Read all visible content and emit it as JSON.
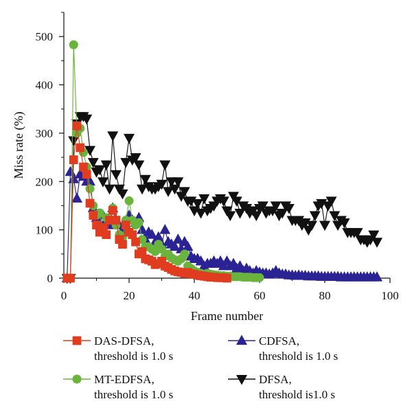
{
  "chart_data": {
    "type": "line",
    "title": "",
    "xlabel": "Frame number",
    "ylabel": "Miss rate (%)",
    "xlim": [
      0,
      100
    ],
    "ylim": [
      0,
      550
    ],
    "xticks": [
      0,
      20,
      40,
      60,
      80,
      100
    ],
    "yticks": [
      0,
      100,
      200,
      300,
      400,
      500
    ],
    "xtick_labels": [
      "0",
      "20",
      "40",
      "60",
      "80",
      "100"
    ],
    "ytick_labels": [
      "0",
      "100",
      "200",
      "300",
      "400",
      "500"
    ],
    "grid": false,
    "legend_position": "bottom",
    "series": [
      {
        "name": "DAS-DFSA,",
        "legend_line2": "threshold is 1.0 s",
        "color": "#e03c1f",
        "marker": "square",
        "x": [
          1,
          2,
          3,
          4,
          5,
          6,
          7,
          8,
          9,
          10,
          11,
          12,
          13,
          14,
          15,
          16,
          17,
          18,
          19,
          20,
          21,
          22,
          23,
          24,
          25,
          26,
          27,
          28,
          29,
          30,
          31,
          32,
          33,
          34,
          35,
          36,
          37,
          38,
          39,
          40,
          41,
          42,
          43,
          44,
          45,
          46,
          47,
          48,
          49,
          50
        ],
        "y": [
          0,
          0,
          245,
          315,
          270,
          230,
          215,
          155,
          130,
          110,
          95,
          105,
          90,
          120,
          140,
          120,
          80,
          70,
          110,
          95,
          90,
          75,
          50,
          55,
          40,
          38,
          35,
          28,
          30,
          35,
          25,
          22,
          18,
          15,
          13,
          12,
          10,
          12,
          9,
          8,
          6,
          5,
          4,
          3,
          2,
          2,
          1,
          1,
          1,
          0
        ]
      },
      {
        "name": "MT-EDFSA,",
        "legend_line2": "threshold is 1.0 s",
        "color": "#6ab43e",
        "marker": "circle",
        "x": [
          1,
          2,
          3,
          4,
          5,
          6,
          7,
          8,
          9,
          10,
          11,
          12,
          13,
          14,
          15,
          16,
          17,
          18,
          19,
          20,
          21,
          22,
          23,
          24,
          25,
          26,
          27,
          28,
          29,
          30,
          31,
          32,
          33,
          34,
          35,
          36,
          37,
          38,
          39,
          40,
          41,
          42,
          43,
          44,
          45,
          46,
          47,
          48,
          49,
          50,
          51,
          52,
          53,
          54,
          55,
          56,
          57,
          58,
          59,
          60
        ],
        "y": [
          0,
          0,
          483,
          300,
          310,
          260,
          230,
          185,
          150,
          130,
          135,
          100,
          125,
          120,
          145,
          110,
          90,
          85,
          120,
          160,
          120,
          110,
          115,
          80,
          65,
          65,
          60,
          55,
          70,
          60,
          45,
          50,
          42,
          38,
          35,
          40,
          50,
          25,
          20,
          15,
          12,
          10,
          8,
          10,
          8,
          7,
          6,
          5,
          5,
          4,
          4,
          3,
          3,
          3,
          2,
          2,
          2,
          1,
          1,
          1
        ]
      },
      {
        "name": "CDFSA,",
        "legend_line2": "threshold is 1.0 s",
        "color": "#2b2394",
        "marker": "triangle-up",
        "x": [
          1,
          2,
          3,
          4,
          5,
          6,
          7,
          8,
          9,
          10,
          11,
          12,
          13,
          14,
          15,
          16,
          17,
          18,
          19,
          20,
          21,
          22,
          23,
          24,
          25,
          26,
          27,
          28,
          29,
          30,
          31,
          32,
          33,
          34,
          35,
          36,
          37,
          38,
          39,
          40,
          41,
          42,
          43,
          44,
          45,
          46,
          47,
          48,
          49,
          50,
          51,
          52,
          53,
          54,
          55,
          56,
          57,
          58,
          59,
          60,
          61,
          62,
          63,
          64,
          65,
          66,
          67,
          68,
          69,
          70,
          71,
          72,
          73,
          74,
          75,
          76,
          77,
          78,
          79,
          80,
          81,
          82,
          83,
          84,
          85,
          86,
          87,
          88,
          89,
          90,
          91,
          92,
          93,
          94,
          95,
          96
        ],
        "y": [
          0,
          220,
          205,
          165,
          215,
          210,
          200,
          200,
          145,
          125,
          115,
          130,
          120,
          110,
          145,
          120,
          110,
          100,
          110,
          130,
          120,
          115,
          125,
          100,
          80,
          95,
          90,
          75,
          85,
          70,
          100,
          75,
          70,
          65,
          80,
          60,
          75,
          65,
          45,
          40,
          40,
          35,
          25,
          30,
          30,
          35,
          30,
          35,
          25,
          35,
          25,
          30,
          20,
          25,
          15,
          20,
          15,
          10,
          15,
          12,
          10,
          10,
          8,
          10,
          15,
          10,
          8,
          8,
          6,
          6,
          5,
          6,
          5,
          5,
          4,
          4,
          4,
          4,
          3,
          3,
          3,
          3,
          3,
          3,
          2,
          2,
          2,
          2,
          2,
          2,
          2,
          2,
          2,
          2,
          2,
          2
        ]
      },
      {
        "name": "DFSA,",
        "legend_line2": "threshold is1.0 s",
        "color": "#111111",
        "marker": "triangle-down",
        "x": [
          1,
          2,
          3,
          4,
          5,
          6,
          7,
          8,
          9,
          10,
          11,
          12,
          13,
          14,
          15,
          16,
          17,
          18,
          19,
          20,
          21,
          22,
          23,
          24,
          25,
          26,
          27,
          28,
          29,
          30,
          31,
          32,
          33,
          34,
          35,
          36,
          37,
          38,
          39,
          40,
          41,
          42,
          43,
          44,
          45,
          46,
          47,
          48,
          49,
          50,
          51,
          52,
          53,
          54,
          55,
          56,
          57,
          58,
          59,
          60,
          61,
          62,
          63,
          64,
          65,
          66,
          67,
          68,
          69,
          70,
          71,
          72,
          73,
          74,
          75,
          76,
          77,
          78,
          79,
          80,
          81,
          82,
          83,
          84,
          85,
          86,
          87,
          88,
          89,
          90,
          91,
          92,
          93,
          94,
          95,
          96
        ],
        "y": [
          0,
          0,
          285,
          320,
          335,
          335,
          330,
          265,
          240,
          220,
          225,
          200,
          235,
          185,
          295,
          215,
          185,
          175,
          240,
          290,
          245,
          250,
          235,
          185,
          205,
          190,
          185,
          185,
          190,
          195,
          235,
          180,
          200,
          185,
          200,
          170,
          180,
          160,
          160,
          140,
          155,
          135,
          165,
          140,
          145,
          150,
          160,
          165,
          160,
          140,
          130,
          170,
          160,
          135,
          150,
          145,
          135,
          140,
          130,
          145,
          150,
          135,
          140,
          140,
          150,
          130,
          135,
          150,
          145,
          120,
          120,
          120,
          110,
          115,
          100,
          110,
          130,
          150,
          155,
          110,
          150,
          160,
          130,
          110,
          120,
          115,
          95,
          95,
          95,
          95,
          80,
          80,
          75,
          80,
          90,
          75
        ]
      }
    ]
  },
  "colors": {
    "axis": "#111111",
    "background": "#ffffff"
  }
}
